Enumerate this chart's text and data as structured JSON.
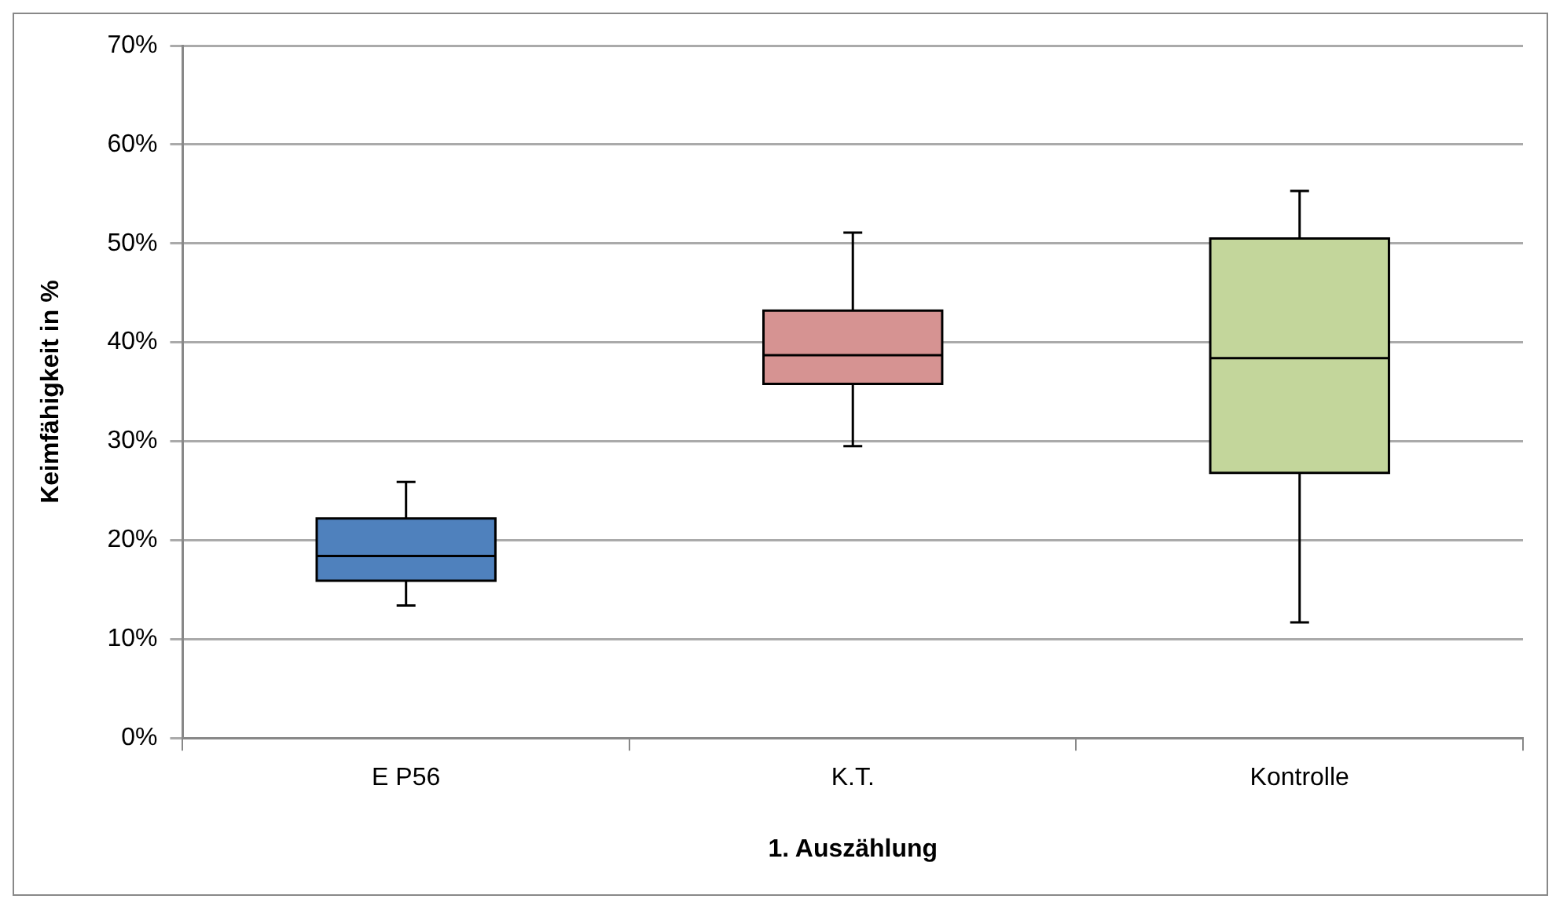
{
  "chart_data": {
    "type": "box",
    "categories": [
      "E P56",
      "K.T.",
      "Kontrolle"
    ],
    "xlabel": "1. Auszählung",
    "ylabel": "Keimfähigkeit in %",
    "colors": [
      "#4f81bd",
      "#d69392",
      "#c3d69b"
    ],
    "boxes": [
      {
        "low": 13.4,
        "q1": 15.9,
        "median": 18.4,
        "q3": 22.2,
        "high": 25.9
      },
      {
        "low": 29.5,
        "q1": 35.8,
        "median": 38.7,
        "q3": 43.2,
        "high": 51.1
      },
      {
        "low": 11.7,
        "q1": 26.8,
        "median": 38.4,
        "q3": 50.5,
        "high": 55.3
      }
    ],
    "ylim": [
      0,
      70
    ],
    "yticks": [
      {
        "value": 0,
        "label": "0%"
      },
      {
        "value": 10,
        "label": "10%"
      },
      {
        "value": 20,
        "label": "20%"
      },
      {
        "value": 30,
        "label": "30%"
      },
      {
        "value": 40,
        "label": "40%"
      },
      {
        "value": 50,
        "label": "50%"
      },
      {
        "value": 60,
        "label": "60%"
      },
      {
        "value": 70,
        "label": "70%"
      }
    ],
    "grid": "y",
    "legend": false
  }
}
